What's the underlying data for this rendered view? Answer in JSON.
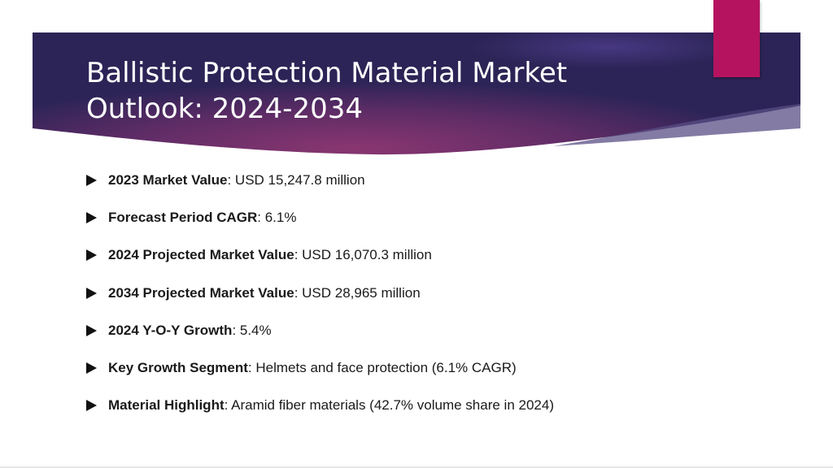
{
  "slide": {
    "title_lines": [
      "Ballistic Protection Material Market",
      "Outlook: 2024-2034"
    ],
    "colors": {
      "banner_dark": "#2c2456",
      "banner_magenta": "#7a3270",
      "accent_tab": "#b5135f",
      "body_text": "#1a1a1a"
    },
    "bullet_icon": "right-triangle-icon",
    "bullets": [
      {
        "label": "2023 Market Value",
        "value": ": USD 15,247.8 million"
      },
      {
        "label": "Forecast Period CAGR",
        "value": ": 6.1%"
      },
      {
        "label": "2024 Projected Market Value",
        "value": ": USD 16,070.3 million"
      },
      {
        "label": "2034 Projected Market Value",
        "value": ": USD 28,965 million"
      },
      {
        "label": "2024 Y-O-Y Growth",
        "value": ": 5.4%"
      },
      {
        "label": "Key Growth Segment",
        "value": ": Helmets and face protection (6.1% CAGR)"
      },
      {
        "label": "Material Highlight",
        "value": ": Aramid fiber materials (42.7% volume share in 2024)"
      }
    ]
  }
}
